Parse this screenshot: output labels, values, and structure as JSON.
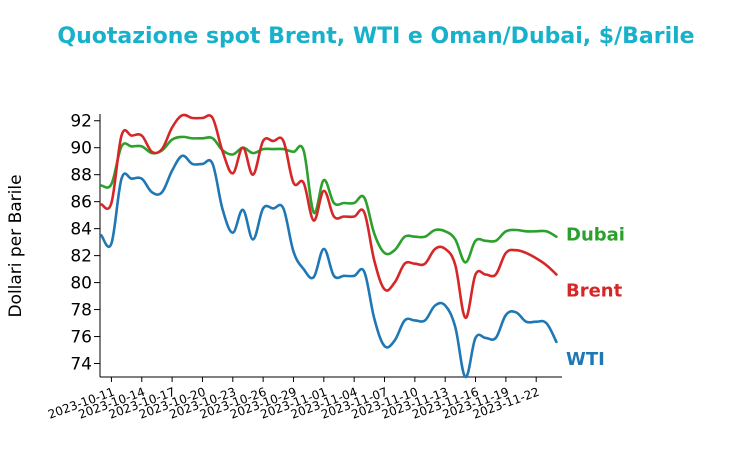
{
  "chart_data": {
    "type": "line",
    "title": "Quotazione spot Brent, WTI e Oman/Dubai, $/Barile",
    "xlabel": "",
    "ylabel": "Dollari per Barile",
    "ylim": [
      73,
      92.5
    ],
    "yticks": [
      74,
      76,
      78,
      80,
      82,
      84,
      86,
      88,
      90,
      92
    ],
    "xticks": [
      "2023-10-11",
      "2023-10-14",
      "2023-10-17",
      "2023-10-20",
      "2023-10-23",
      "2023-10-26",
      "2023-10-29",
      "2023-11-01",
      "2023-11-04",
      "2023-11-07",
      "2023-11-10",
      "2023-11-13",
      "2023-11-16",
      "2023-11-19",
      "2023-11-22"
    ],
    "x": [
      "2023-10-10",
      "2023-10-11",
      "2023-10-12",
      "2023-10-13",
      "2023-10-14",
      "2023-10-15",
      "2023-10-16",
      "2023-10-17",
      "2023-10-18",
      "2023-10-19",
      "2023-10-20",
      "2023-10-21",
      "2023-10-22",
      "2023-10-23",
      "2023-10-24",
      "2023-10-25",
      "2023-10-26",
      "2023-10-27",
      "2023-10-28",
      "2023-10-29",
      "2023-10-30",
      "2023-10-31",
      "2023-11-01",
      "2023-11-02",
      "2023-11-03",
      "2023-11-04",
      "2023-11-05",
      "2023-11-06",
      "2023-11-07",
      "2023-11-08",
      "2023-11-09",
      "2023-11-10",
      "2023-11-11",
      "2023-11-12",
      "2023-11-13",
      "2023-11-14",
      "2023-11-15",
      "2023-11-16",
      "2023-11-17",
      "2023-11-18",
      "2023-11-19",
      "2023-11-20",
      "2023-11-21",
      "2023-11-22",
      "2023-11-23",
      "2023-11-24"
    ],
    "series": [
      {
        "name": "Dubai",
        "color": "#2ca02c",
        "values": [
          87.2,
          87.3,
          90.1,
          90.1,
          90.1,
          89.6,
          89.8,
          90.6,
          90.8,
          90.7,
          90.7,
          90.7,
          89.8,
          89.5,
          90.0,
          89.6,
          89.9,
          89.9,
          89.9,
          89.7,
          89.8,
          85.2,
          87.6,
          85.9,
          85.9,
          85.9,
          86.3,
          83.6,
          82.2,
          82.4,
          83.4,
          83.4,
          83.4,
          83.9,
          83.8,
          83.2,
          81.5,
          83.1,
          83.1,
          83.1,
          83.8,
          83.9,
          83.8,
          83.8,
          83.8,
          83.4
        ]
      },
      {
        "name": "Brent",
        "color": "#d62728",
        "values": [
          85.8,
          85.9,
          90.9,
          90.9,
          90.9,
          89.7,
          89.9,
          91.5,
          92.4,
          92.2,
          92.2,
          92.2,
          89.7,
          88.1,
          90.0,
          88.0,
          90.5,
          90.5,
          90.5,
          87.4,
          87.4,
          84.6,
          86.8,
          84.9,
          84.9,
          84.9,
          85.2,
          81.6,
          79.5,
          80.0,
          81.4,
          81.4,
          81.4,
          82.5,
          82.5,
          81.3,
          77.4,
          80.6,
          80.6,
          80.6,
          82.2,
          82.4,
          82.2,
          81.8,
          81.3,
          80.6
        ]
      },
      {
        "name": "WTI",
        "color": "#1f77b4",
        "values": [
          83.5,
          82.9,
          87.7,
          87.7,
          87.7,
          86.7,
          86.7,
          88.3,
          89.4,
          88.8,
          88.8,
          88.8,
          85.4,
          83.7,
          85.4,
          83.2,
          85.5,
          85.5,
          85.5,
          82.3,
          81.0,
          80.4,
          82.5,
          80.5,
          80.5,
          80.5,
          80.8,
          77.3,
          75.3,
          75.7,
          77.2,
          77.2,
          77.2,
          78.3,
          78.3,
          76.7,
          73.0,
          75.9,
          75.9,
          75.9,
          77.6,
          77.8,
          77.1,
          77.1,
          77.0,
          75.6
        ]
      }
    ]
  },
  "colors": {
    "title": "#17b1cc",
    "axis": "#000000"
  }
}
